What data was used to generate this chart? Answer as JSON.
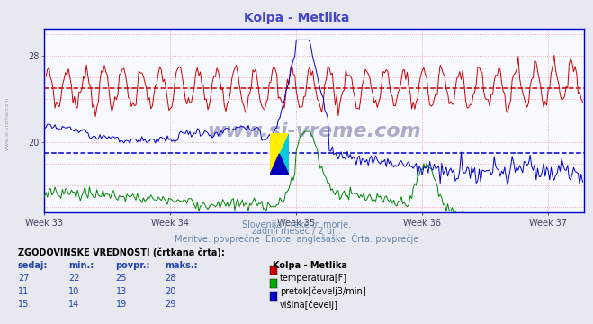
{
  "title": "Kolpa - Metlika",
  "title_color": "#4444cc",
  "bg_color": "#e8e8f0",
  "plot_bg_color": "#f8f8ff",
  "xlabel_weeks": [
    "Week 33",
    "Week 34",
    "Week 35",
    "Week 36",
    "Week 37"
  ],
  "ylabel_ticks": [
    20,
    28
  ],
  "ylim": [
    13.5,
    30.5
  ],
  "xlim": [
    0,
    360
  ],
  "subtitle1": "Slovenija / reke in morje.",
  "subtitle2": "zadnji mesec / 2 uri.",
  "subtitle3": "Meritve: povprečne  Enote: anglešaške  Črta: povprečje",
  "table_header": "ZGODOVINSKE VREDNOSTI (črtkana črta):",
  "table_cols": [
    "sedaj:",
    "min.:",
    "povpr.:",
    "maks.:"
  ],
  "table_col_station": "Kolpa - Metlika",
  "table_rows": [
    {
      "sedaj": 27,
      "min": 22,
      "povpr": 25,
      "maks": 28,
      "color": "#cc0000",
      "label": "temperatura[F]"
    },
    {
      "sedaj": 11,
      "min": 10,
      "povpr": 13,
      "maks": 20,
      "color": "#00aa00",
      "label": "pretok[čevelj3/min]"
    },
    {
      "sedaj": 15,
      "min": 14,
      "povpr": 19,
      "maks": 29,
      "color": "#0000cc",
      "label": "višina[čevelj]"
    }
  ],
  "watermark": "www.si-vreme.com",
  "temp_avg": 25,
  "flow_avg": 13,
  "height_avg": 19,
  "n_points": 360,
  "week_positions": [
    0,
    84,
    168,
    252,
    336
  ],
  "grid_color": "#ddaabb",
  "spine_color": "#0000cc",
  "avg_color_red": "#cc0000",
  "avg_color_green": "#008800",
  "avg_color_blue": "#0000cc"
}
